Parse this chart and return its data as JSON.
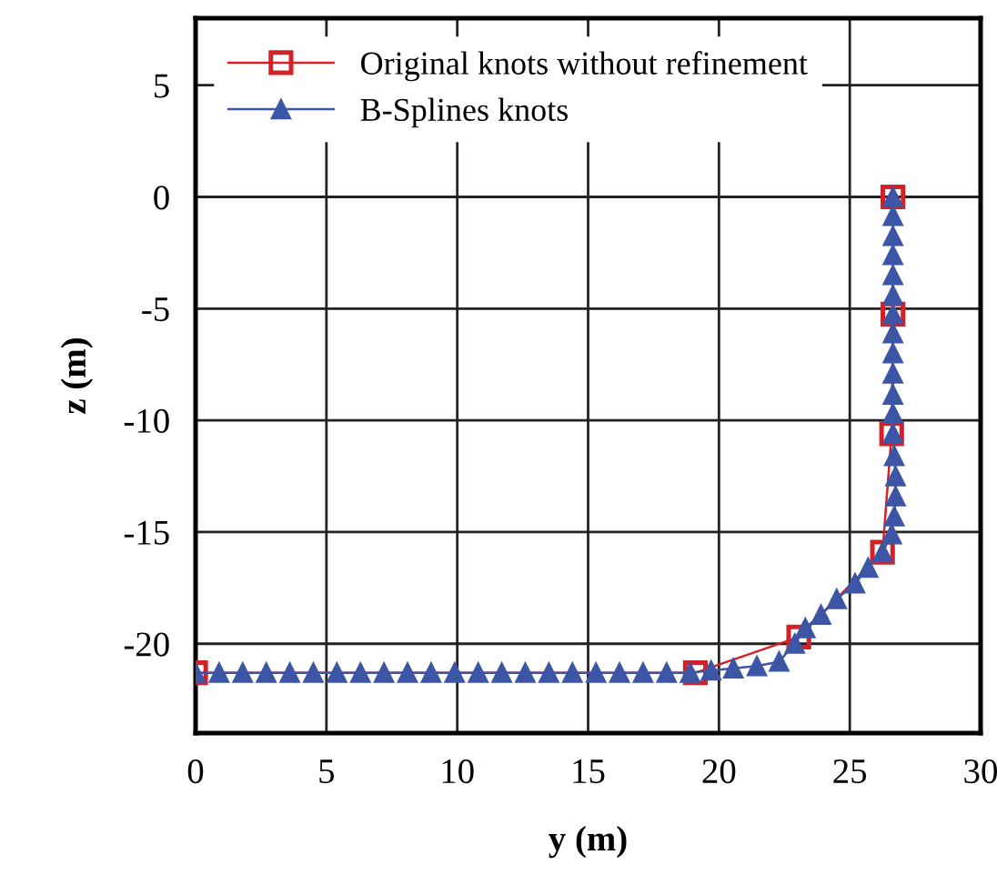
{
  "chart_data": {
    "type": "line",
    "xlabel": "y (m)",
    "ylabel": "z (m)",
    "xlim": [
      0,
      30
    ],
    "ylim": [
      -24,
      8
    ],
    "xticks": [
      0,
      5,
      10,
      15,
      20,
      25,
      30
    ],
    "yticks": [
      -20,
      -15,
      -10,
      -5,
      0,
      5
    ],
    "grid": true,
    "legend": "top left",
    "series": [
      {
        "name": "Original knots without refinement",
        "color": "#d42027",
        "marker": "square",
        "x": [
          0,
          19.1,
          23.05,
          26.25,
          26.6,
          26.65,
          26.65
        ],
        "values": [
          -21.3,
          -21.3,
          -19.7,
          -15.9,
          -10.6,
          -5.25,
          0
        ]
      },
      {
        "name": "B-Splines knots",
        "color": "#3d55a5",
        "marker": "triangle",
        "x": [
          0,
          0.9,
          1.8,
          2.7,
          3.6,
          4.5,
          5.4,
          6.3,
          7.2,
          8.1,
          9.0,
          9.9,
          10.8,
          11.7,
          12.6,
          13.5,
          14.4,
          15.3,
          16.2,
          17.1,
          18.0,
          18.9,
          19.7,
          20.55,
          21.45,
          22.3,
          22.9,
          23.3,
          23.9,
          24.5,
          25.2,
          25.7,
          26.25,
          26.6,
          26.7,
          26.75,
          26.75,
          26.7,
          26.65,
          26.65,
          26.65,
          26.65,
          26.65,
          26.65,
          26.65,
          26.65,
          26.65,
          26.65,
          26.65,
          26.65,
          26.65
        ],
        "values": [
          -21.3,
          -21.3,
          -21.3,
          -21.3,
          -21.3,
          -21.3,
          -21.3,
          -21.3,
          -21.3,
          -21.3,
          -21.3,
          -21.3,
          -21.3,
          -21.3,
          -21.3,
          -21.3,
          -21.3,
          -21.3,
          -21.3,
          -21.3,
          -21.3,
          -21.3,
          -21.2,
          -21.1,
          -21.0,
          -20.8,
          -20.0,
          -19.3,
          -18.7,
          -18.0,
          -17.3,
          -16.6,
          -15.9,
          -15.1,
          -14.3,
          -13.4,
          -12.5,
          -11.6,
          -10.6,
          -9.7,
          -8.85,
          -7.9,
          -7.0,
          -6.1,
          -5.25,
          -4.4,
          -3.5,
          -2.6,
          -1.75,
          -0.85,
          0
        ]
      }
    ]
  }
}
